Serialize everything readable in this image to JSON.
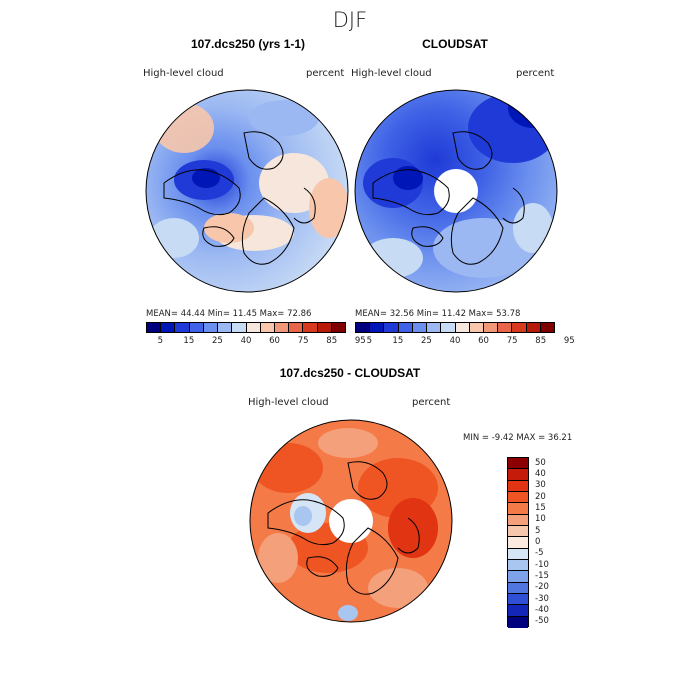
{
  "season": "DJF",
  "panel1": {
    "title": "107.dcs250 (yrs 1-1)",
    "field": "High-level cloud",
    "units": "percent",
    "stats": "MEAN=   44.44   Min=   11.45   Max=   72.86"
  },
  "panel2": {
    "title": "CLOUDSAT",
    "field": "High-level cloud",
    "units": "percent",
    "stats": "MEAN=   32.56   Min=   11.42   Max=   53.78"
  },
  "colorbar_top": {
    "labels": [
      "5",
      "15",
      "25",
      "40",
      "60",
      "75",
      "85",
      "95"
    ],
    "colors": [
      "#00007f",
      "#0016b7",
      "#1f3ad6",
      "#3f62e6",
      "#6a8fee",
      "#9bb8f2",
      "#c8dbf5",
      "#f6e6dc",
      "#f7c6ab",
      "#f1987a",
      "#e8654a",
      "#d83a20",
      "#b81a0a",
      "#7f0000"
    ]
  },
  "diff": {
    "title": "107.dcs250 - CLOUDSAT",
    "field": "High-level cloud",
    "units": "percent",
    "stats": "MIN =   -9.42  MAX =   36.21",
    "levels": [
      "50",
      "40",
      "30",
      "20",
      "15",
      "10",
      "5",
      "0",
      "-5",
      "-10",
      "-15",
      "-20",
      "-30",
      "-40",
      "-50"
    ],
    "colors": [
      "#8b0000",
      "#c41b0b",
      "#e03412",
      "#ef5523",
      "#f47a48",
      "#f4a07a",
      "#f6c7ad",
      "#faeae0",
      "#d6e5f6",
      "#a9c6f0",
      "#7ea2e9",
      "#5276e0",
      "#2f4fd6",
      "#1426b8",
      "#00007f"
    ]
  }
}
